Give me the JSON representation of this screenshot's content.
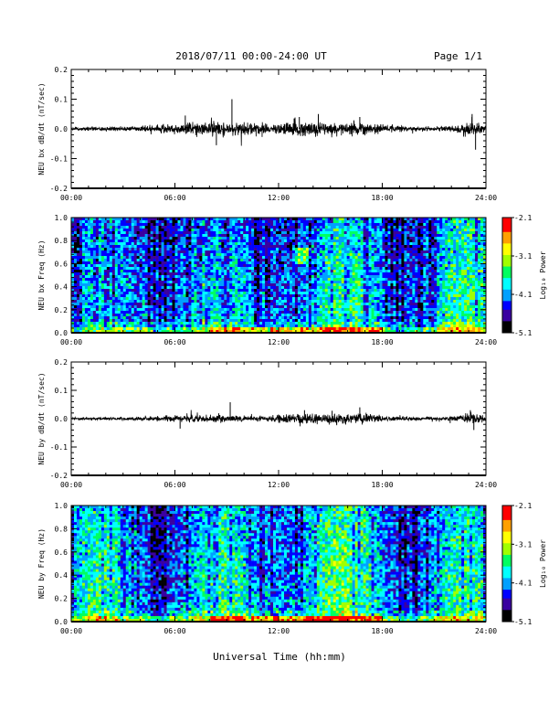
{
  "header": {
    "title": "2018/07/11  00:00-24:00 UT",
    "page": "Page 1/1"
  },
  "footer": {
    "xlabel": "Universal Time (hh:mm)"
  },
  "colorbar": {
    "label": "Log₁₀ Power",
    "ticks": [
      "-2.1",
      "-3.1",
      "-4.1",
      "-5.1"
    ],
    "range": [
      -5.1,
      -2.1
    ],
    "colors": [
      "#000000",
      "#3a00a0",
      "#0000ff",
      "#00a0ff",
      "#00ffff",
      "#00ff60",
      "#a0ff00",
      "#ffff00",
      "#ffa000",
      "#ff0000"
    ]
  },
  "chart_data": [
    {
      "type": "line",
      "ylabel": "NEU bx dB/dt (nT/sec)",
      "xticks": [
        "00:00",
        "06:00",
        "12:00",
        "18:00",
        "24:00"
      ],
      "yticks": [
        "0.2",
        "0.1",
        "0.0",
        "-0.1",
        "-0.2"
      ],
      "xlim": [
        0,
        24
      ],
      "ylim": [
        -0.2,
        0.2
      ],
      "envelope": {
        "hours": [
          0,
          2,
          4,
          5,
          6,
          7,
          8,
          9,
          10,
          11,
          12,
          13,
          14,
          15,
          16,
          17,
          18,
          19,
          20,
          21,
          22,
          23,
          23.5,
          24
        ],
        "amplitude": [
          0.006,
          0.008,
          0.012,
          0.016,
          0.02,
          0.028,
          0.032,
          0.03,
          0.03,
          0.02,
          0.022,
          0.03,
          0.028,
          0.026,
          0.028,
          0.025,
          0.018,
          0.012,
          0.01,
          0.008,
          0.01,
          0.03,
          0.03,
          0.012
        ]
      },
      "spikes": [
        [
          9.3,
          0.1
        ],
        [
          6.6,
          0.045
        ],
        [
          8.4,
          -0.055
        ],
        [
          14.3,
          0.05
        ],
        [
          13.2,
          0.04
        ],
        [
          23.2,
          0.05
        ],
        [
          23.4,
          -0.07
        ],
        [
          16.7,
          0.04
        ],
        [
          12.9,
          0.035
        ]
      ]
    },
    {
      "type": "heatmap",
      "ylabel": "NEU bx Freq (Hz)",
      "xticks": [
        "00:00",
        "06:00",
        "12:00",
        "18:00",
        "24:00"
      ],
      "yticks": [
        "1.0",
        "0.8",
        "0.6",
        "0.4",
        "0.2",
        "0.0"
      ],
      "xlim": [
        0,
        24
      ],
      "ylim": [
        0.0,
        1.0
      ],
      "zlim": [
        -5.1,
        -2.1
      ]
    },
    {
      "type": "line",
      "ylabel": "NEU by dB/dt (nT/sec)",
      "xticks": [
        "00:00",
        "06:00",
        "12:00",
        "18:00",
        "24:00"
      ],
      "yticks": [
        "0.2",
        "0.1",
        "0.0",
        "-0.1",
        "-0.2"
      ],
      "xlim": [
        0,
        24
      ],
      "ylim": [
        -0.2,
        0.2
      ],
      "envelope": {
        "hours": [
          0,
          2,
          4,
          5,
          6,
          7,
          8,
          9,
          10,
          11,
          12,
          13,
          14,
          15,
          16,
          17,
          18,
          19,
          20,
          21,
          22,
          23,
          23.5,
          24
        ],
        "amplitude": [
          0.005,
          0.006,
          0.008,
          0.01,
          0.014,
          0.016,
          0.016,
          0.015,
          0.014,
          0.012,
          0.016,
          0.02,
          0.022,
          0.022,
          0.026,
          0.024,
          0.014,
          0.01,
          0.008,
          0.007,
          0.008,
          0.02,
          0.022,
          0.01
        ]
      },
      "spikes": [
        [
          9.2,
          0.058
        ],
        [
          6.3,
          -0.035
        ],
        [
          16.7,
          0.04
        ],
        [
          13.5,
          0.03
        ],
        [
          23.3,
          -0.04
        ],
        [
          23.1,
          0.03
        ],
        [
          15.1,
          0.028
        ]
      ]
    },
    {
      "type": "heatmap",
      "ylabel": "NEU by Freq (Hz)",
      "xticks": [
        "00:00",
        "06:00",
        "12:00",
        "18:00",
        "24:00"
      ],
      "yticks": [
        "1.0",
        "0.8",
        "0.6",
        "0.4",
        "0.2",
        "0.0"
      ],
      "xlim": [
        0,
        24
      ],
      "ylim": [
        0.0,
        1.0
      ],
      "zlim": [
        -5.1,
        -2.1
      ]
    }
  ]
}
